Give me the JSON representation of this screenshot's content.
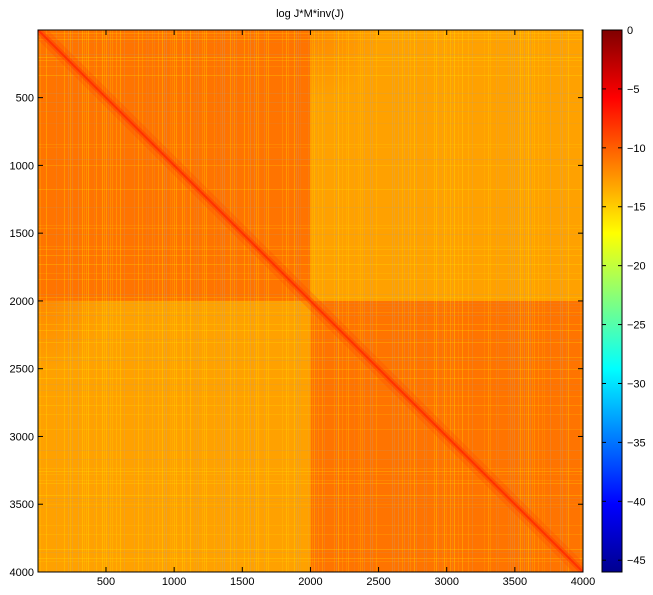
{
  "chart_data": [
    {
      "type": "heatmap",
      "title": "log J*M*inv(J)",
      "x_ticks": [
        500,
        1000,
        1500,
        2000,
        2500,
        3000,
        3500,
        4000
      ],
      "y_ticks": [
        500,
        1000,
        1500,
        2000,
        2500,
        3000,
        3500,
        4000
      ],
      "xlim": [
        1,
        4000
      ],
      "ylim": [
        1,
        4000
      ],
      "y_direction": "reversed",
      "block_boundary": 2000,
      "diagonal_value": -8,
      "near_diagonal_block_value": -11,
      "off_diagonal_block_value": -13,
      "corner_tint_value": -12,
      "background_value": -14,
      "colormap": "jet",
      "colorbar": {
        "range": [
          -46,
          0
        ],
        "ticks": [
          0,
          -5,
          -10,
          -15,
          -20,
          -25,
          -30,
          -35,
          -40,
          -45
        ],
        "placement": "right"
      }
    }
  ]
}
